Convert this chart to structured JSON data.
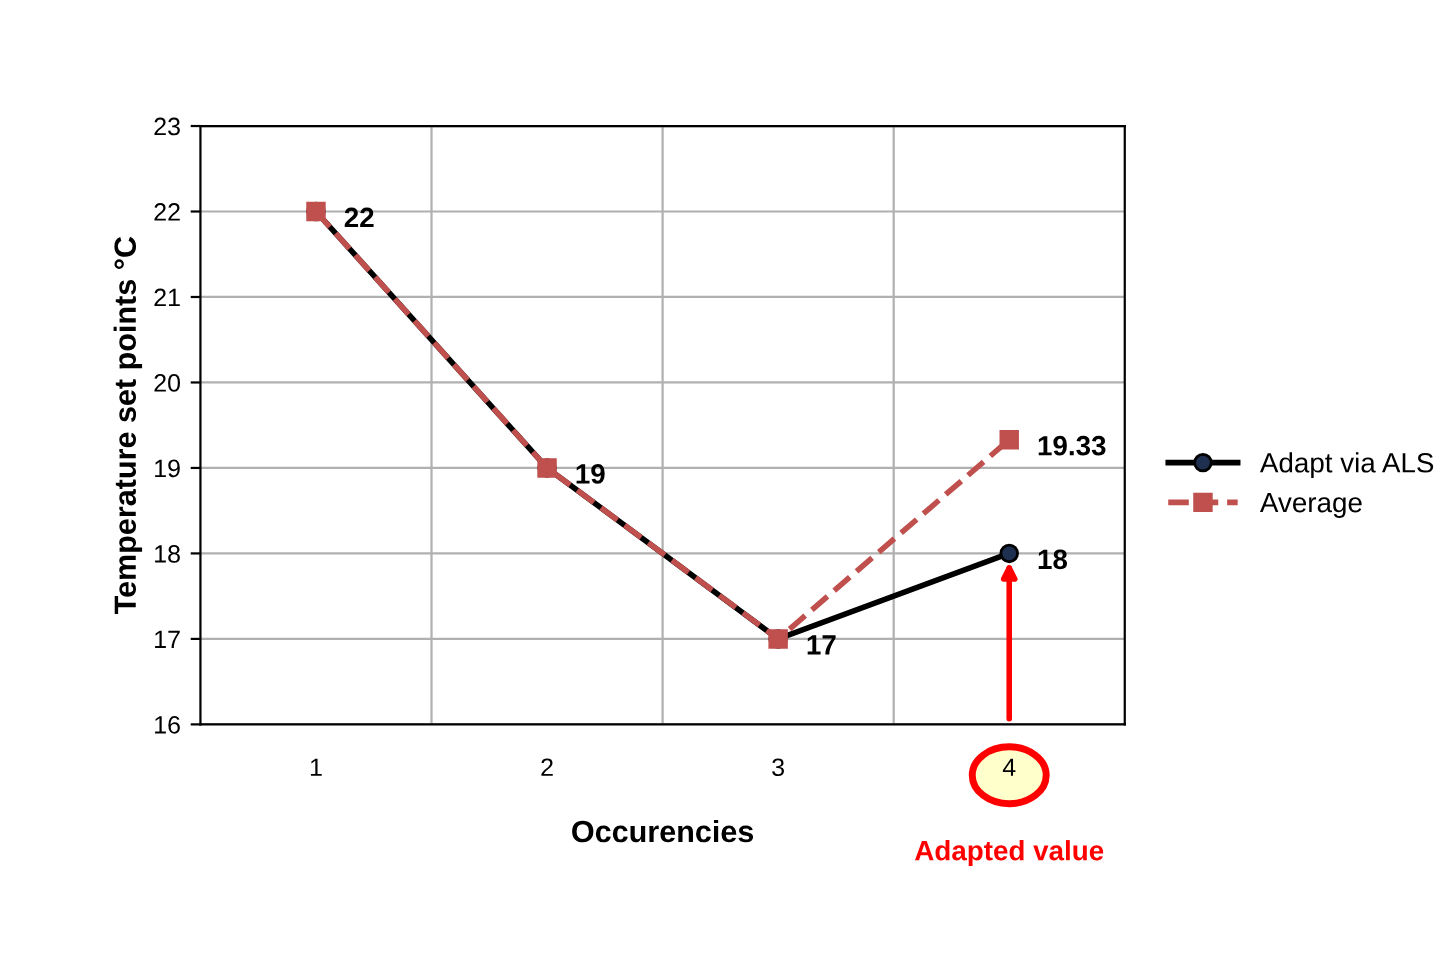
{
  "chart_data": {
    "type": "line",
    "xlabel": "Occurencies",
    "ylabel": "Temperature set points °C",
    "categories": [
      "1",
      "2",
      "3",
      "4"
    ],
    "series": [
      {
        "name": "Adapt via ALS",
        "color": "#000000",
        "values": [
          22,
          19,
          17,
          18
        ],
        "marker": "circle",
        "line_style": "solid",
        "value_labels": [
          "22",
          "19",
          "17",
          "18"
        ]
      },
      {
        "name": "Average",
        "color": "#c0504d",
        "values": [
          22,
          19,
          17,
          19.33
        ],
        "marker": "square",
        "line_style": "dashed",
        "value_labels": [
          null,
          null,
          null,
          "19.33"
        ]
      }
    ],
    "ylim": [
      16,
      23
    ],
    "yticks": [
      16,
      17,
      18,
      19,
      20,
      21,
      22,
      23
    ],
    "grid": true,
    "legend": "right",
    "annotations": [
      "Adapted value"
    ]
  }
}
